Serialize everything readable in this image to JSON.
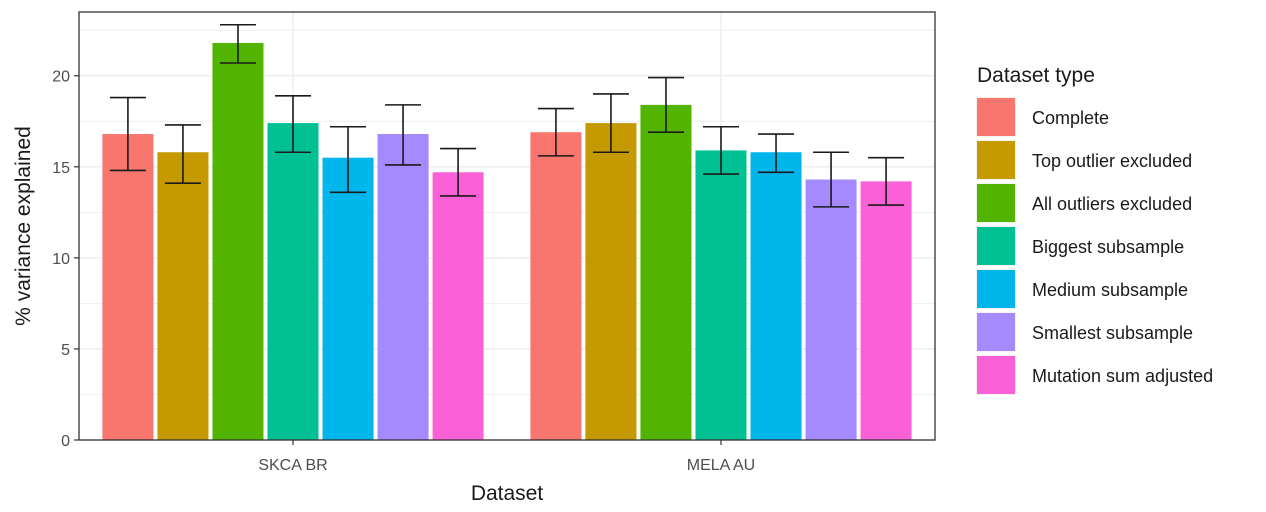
{
  "chart_data": {
    "type": "bar",
    "xlabel": "Dataset",
    "ylabel": "% variance explained",
    "categories": [
      "SKCA BR",
      "MELA AU"
    ],
    "ylim": [
      0,
      23.5
    ],
    "yticks": [
      0,
      5,
      10,
      15,
      20
    ],
    "grid": true,
    "legend": {
      "title": "Dataset type",
      "position": "right"
    },
    "series": [
      {
        "name": "Complete",
        "color": "#F8766D",
        "values": [
          16.8,
          16.9
        ],
        "error_low": [
          14.8,
          15.6
        ],
        "error_high": [
          18.8,
          18.2
        ]
      },
      {
        "name": "Top outlier excluded",
        "color": "#C49A00",
        "values": [
          15.8,
          17.4
        ],
        "error_low": [
          14.1,
          15.8
        ],
        "error_high": [
          17.3,
          19.0
        ]
      },
      {
        "name": "All outliers excluded",
        "color": "#53B400",
        "values": [
          21.8,
          18.4
        ],
        "error_low": [
          20.7,
          16.9
        ],
        "error_high": [
          22.8,
          19.9
        ]
      },
      {
        "name": "Biggest subsample",
        "color": "#00C094",
        "values": [
          17.4,
          15.9
        ],
        "error_low": [
          15.8,
          14.6
        ],
        "error_high": [
          18.9,
          17.2
        ]
      },
      {
        "name": "Medium subsample",
        "color": "#00B6EB",
        "values": [
          15.5,
          15.8
        ],
        "error_low": [
          13.6,
          14.7
        ],
        "error_high": [
          17.2,
          16.8
        ]
      },
      {
        "name": "Smallest subsample",
        "color": "#A58AFF",
        "values": [
          16.8,
          14.3
        ],
        "error_low": [
          15.1,
          12.8
        ],
        "error_high": [
          18.4,
          15.8
        ]
      },
      {
        "name": "Mutation sum adjusted",
        "color": "#FB61D7",
        "values": [
          14.7,
          14.2
        ],
        "error_low": [
          13.4,
          12.9
        ],
        "error_high": [
          16.0,
          15.5
        ]
      }
    ]
  }
}
